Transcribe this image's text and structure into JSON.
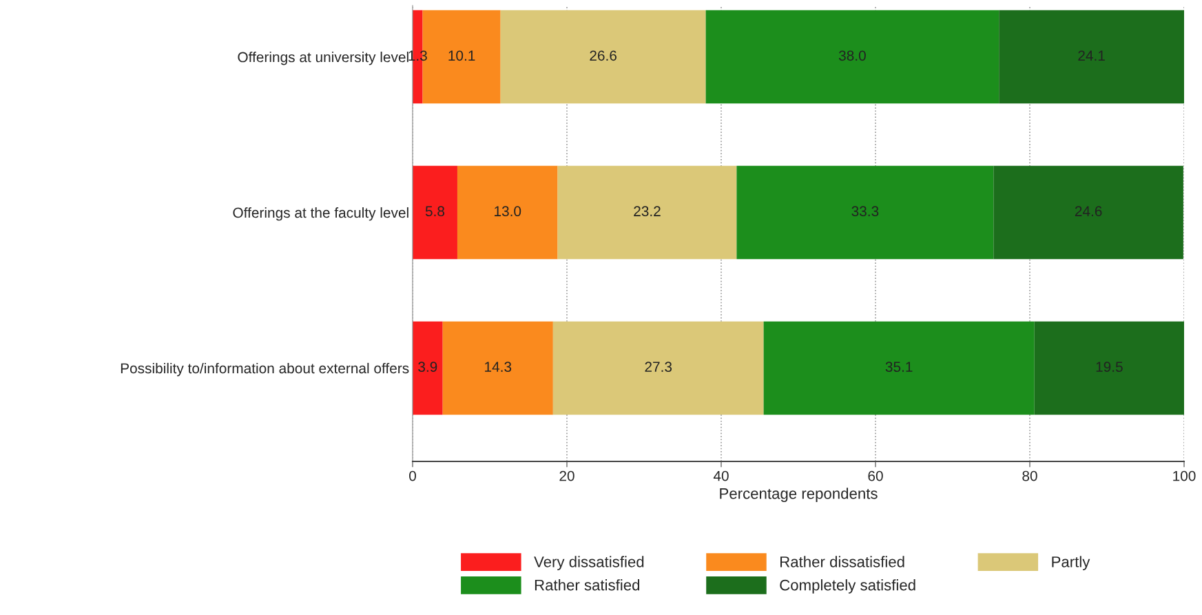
{
  "chart_data": {
    "type": "bar",
    "orientation": "horizontal",
    "stacked": true,
    "xlabel": "Percentage repondents",
    "categories": [
      "Offerings at university level",
      "Offerings at the faculty level",
      "Possibility to/information about external offers"
    ],
    "series": [
      {
        "name": "Very dissatisfied",
        "color": "#fb1e1e",
        "values": [
          1.3,
          5.8,
          3.9
        ],
        "value_labels": [
          "1.3",
          "5.8",
          "3.9"
        ]
      },
      {
        "name": "Rather dissatisfied",
        "color": "#fa8a1e",
        "values": [
          10.1,
          13.0,
          14.3
        ],
        "value_labels": [
          "10.1",
          "13.0",
          "14.3"
        ]
      },
      {
        "name": "Partly",
        "color": "#dbc878",
        "values": [
          26.6,
          23.2,
          27.3
        ],
        "value_labels": [
          "26.6",
          "23.2",
          "27.3"
        ]
      },
      {
        "name": "Rather satisfied",
        "color": "#1c8e1c",
        "values": [
          38.0,
          33.3,
          35.1
        ],
        "value_labels": [
          "38.0",
          "33.3",
          "35.1"
        ]
      },
      {
        "name": "Completely satisfied",
        "color": "#1c6e1c",
        "values": [
          24.1,
          24.6,
          19.5
        ],
        "value_labels": [
          "24.1",
          "24.6",
          "19.5"
        ]
      }
    ],
    "xlim": [
      0,
      100
    ],
    "xticks": [
      0,
      20,
      40,
      60,
      80,
      100
    ],
    "grid": "x",
    "legend": "bottom"
  }
}
